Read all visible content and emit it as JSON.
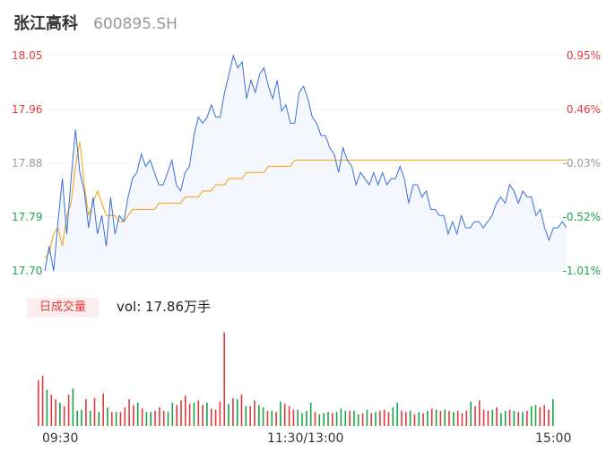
{
  "header": {
    "name": "张江高科",
    "code": "600895.SH"
  },
  "colors": {
    "up": "#e4393c",
    "down": "#1aa34a",
    "neutral": "#999999",
    "price_line": "#3a6fd9",
    "avg_line": "#f0a30a",
    "area_fill": "#f4f7fd"
  },
  "volume": {
    "tab_label": "日成交量",
    "summary": "vol: 17.86万手"
  },
  "chart_data": {
    "type": "line",
    "title": "",
    "ylim": [
      17.7,
      18.05
    ],
    "y_ticks": [
      {
        "price": "18.05",
        "pct": "0.95%",
        "color": "#e4393c"
      },
      {
        "price": "17.96",
        "pct": "0.46%",
        "color": "#e4393c"
      },
      {
        "price": "17.88",
        "pct": "-0.03%",
        "color": "#999999"
      },
      {
        "price": "17.79",
        "pct": "-0.52%",
        "color": "#1aa34a"
      },
      {
        "price": "17.70",
        "pct": "-1.01%",
        "color": "#1aa34a"
      }
    ],
    "x_ticks": [
      "09:30",
      "11:30/13:00",
      "15:00"
    ],
    "series": [
      {
        "values": [
          17.72,
          17.73,
          17.76,
          17.77,
          17.74,
          17.79,
          17.81,
          17.87,
          17.91,
          17.84,
          17.79,
          17.81,
          17.83,
          17.81,
          17.79,
          17.79,
          17.79,
          17.78,
          17.78,
          17.79,
          17.8,
          17.8,
          17.8,
          17.8,
          17.8,
          17.8,
          17.81,
          17.81,
          17.81,
          17.81,
          17.81,
          17.81,
          17.82,
          17.82,
          17.82,
          17.82,
          17.83,
          17.83,
          17.83,
          17.84,
          17.84,
          17.84,
          17.85,
          17.85,
          17.85,
          17.85,
          17.86,
          17.86,
          17.86,
          17.86,
          17.86,
          17.87,
          17.87,
          17.87,
          17.87,
          17.87,
          17.87,
          17.88,
          17.88,
          17.88,
          17.88,
          17.88,
          17.88,
          17.88,
          17.88,
          17.88,
          17.88,
          17.88,
          17.88,
          17.88,
          17.88,
          17.88,
          17.88,
          17.88,
          17.88,
          17.88,
          17.88,
          17.88,
          17.88,
          17.88,
          17.88,
          17.88,
          17.88,
          17.88,
          17.88,
          17.88,
          17.88,
          17.88,
          17.88,
          17.88,
          17.88,
          17.88,
          17.88,
          17.88,
          17.88,
          17.88,
          17.88,
          17.88,
          17.88,
          17.88,
          17.88,
          17.88,
          17.88,
          17.88,
          17.88,
          17.88,
          17.88,
          17.88,
          17.88,
          17.88,
          17.88,
          17.88,
          17.88,
          17.88,
          17.88,
          17.88,
          17.88,
          17.88,
          17.88,
          17.88
        ]
      },
      {
        "values": [
          17.7,
          17.74,
          17.7,
          17.78,
          17.85,
          17.76,
          17.85,
          17.93,
          17.86,
          17.83,
          17.77,
          17.82,
          17.76,
          17.79,
          17.74,
          17.82,
          17.76,
          17.79,
          17.78,
          17.82,
          17.85,
          17.86,
          17.89,
          17.87,
          17.88,
          17.86,
          17.84,
          17.84,
          17.86,
          17.88,
          17.84,
          17.83,
          17.86,
          17.87,
          17.92,
          17.95,
          17.94,
          17.95,
          17.97,
          17.95,
          17.95,
          17.99,
          18.02,
          18.05,
          18.03,
          18.04,
          17.98,
          18.01,
          17.99,
          18.02,
          18.03,
          18.0,
          17.98,
          18.01,
          17.96,
          17.97,
          17.94,
          17.94,
          17.99,
          18.0,
          17.98,
          17.95,
          17.94,
          17.92,
          17.92,
          17.9,
          17.89,
          17.86,
          17.9,
          17.88,
          17.87,
          17.84,
          17.86,
          17.85,
          17.84,
          17.86,
          17.84,
          17.86,
          17.84,
          17.85,
          17.85,
          17.87,
          17.85,
          17.81,
          17.84,
          17.84,
          17.82,
          17.83,
          17.8,
          17.8,
          17.79,
          17.79,
          17.76,
          17.78,
          17.76,
          17.79,
          17.77,
          17.77,
          17.78,
          17.78,
          17.77,
          17.78,
          17.79,
          17.81,
          17.82,
          17.81,
          17.84,
          17.83,
          17.81,
          17.83,
          17.82,
          17.82,
          17.79,
          17.8,
          17.77,
          17.75,
          17.77,
          17.77,
          17.78,
          17.77
        ]
      }
    ],
    "volume_values": [
      39,
      43,
      31,
      27,
      23,
      20,
      17,
      27,
      32,
      13,
      14,
      23,
      13,
      24,
      12,
      28,
      16,
      12,
      12,
      12,
      16,
      23,
      18,
      20,
      15,
      12,
      12,
      13,
      16,
      13,
      12,
      20,
      18,
      22,
      26,
      19,
      20,
      22,
      18,
      20,
      15,
      14,
      21,
      80,
      19,
      24,
      23,
      27,
      17,
      17,
      22,
      18,
      16,
      13,
      13,
      12,
      21,
      19,
      17,
      14,
      14,
      11,
      13,
      20,
      12,
      10,
      11,
      12,
      11,
      12,
      15,
      13,
      13,
      13,
      10,
      11,
      14,
      11,
      12,
      13,
      14,
      12,
      16,
      20,
      13,
      12,
      13,
      10,
      12,
      11,
      13,
      15,
      14,
      13,
      14,
      13,
      12,
      13,
      11,
      13,
      21,
      17,
      22,
      14,
      13,
      14,
      16,
      11,
      13,
      14,
      13,
      12,
      12,
      13,
      17,
      18,
      16,
      18,
      14,
      23
    ],
    "volume_ylim": [
      0,
      82
    ]
  }
}
